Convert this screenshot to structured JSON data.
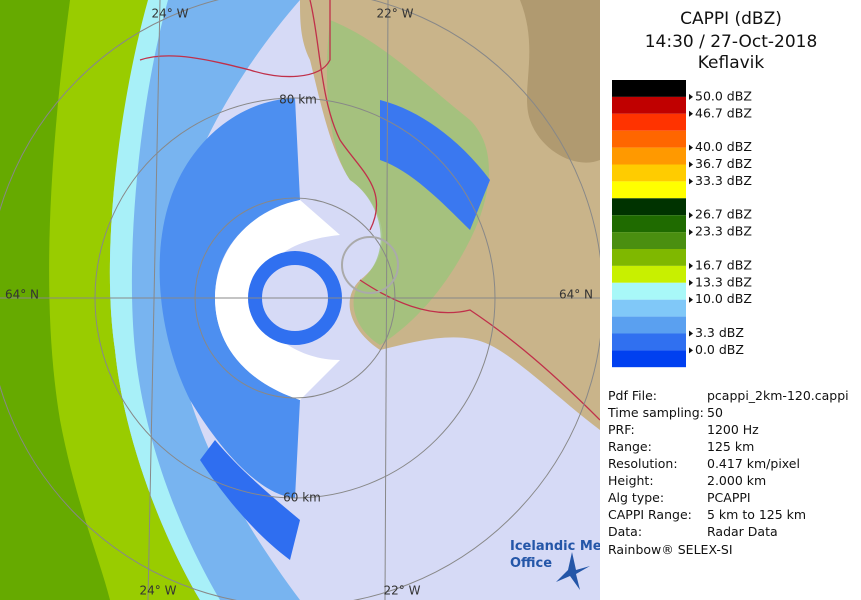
{
  "panel": {
    "title": "CAPPI (dBZ)",
    "time": "14:30 / 27-Oct-2018",
    "site": "Keflavik"
  },
  "legend": {
    "colors": [
      "#000000",
      "#c00000",
      "#ff3300",
      "#ff6600",
      "#ff9900",
      "#ffcc00",
      "#ffff00",
      "#003300",
      "#1f6b00",
      "#4a8f10",
      "#7fb800",
      "#c8f000",
      "#a8f8f8",
      "#80c8f8",
      "#5aa0f0",
      "#3070f0",
      "#0040f0",
      "#ffffff"
    ],
    "labels": [
      "50.0 dBZ",
      "46.7 dBZ",
      null,
      "40.0 dBZ",
      "36.7 dBZ",
      "33.3 dBZ",
      null,
      "26.7 dBZ",
      "23.3 dBZ",
      null,
      "16.7 dBZ",
      "13.3 dBZ",
      "10.0 dBZ",
      null,
      "3.3 dBZ",
      "0.0 dBZ"
    ]
  },
  "info": {
    "rows": [
      [
        "Pdf File:",
        "pcappi_2km-120.cappi"
      ],
      [
        "Time sampling:",
        "50"
      ],
      [
        "PRF:",
        "1200 Hz"
      ],
      [
        "Range:",
        "125 km"
      ],
      [
        "Resolution:",
        "0.417 km/pixel"
      ],
      [
        "Height:",
        "2.000 km"
      ],
      [
        "Alg type:",
        "PCAPPI"
      ],
      [
        "CAPPI Range:",
        "5 km to 125 km"
      ],
      [
        "Data:",
        "Radar Data"
      ]
    ]
  },
  "footer": "Rainbow® SELEX-SI",
  "map": {
    "labels": [
      "24° W",
      "22° W",
      "24° W",
      "22° W",
      "64° N",
      "64° N",
      "80 km",
      "60 km"
    ],
    "logo": [
      "Icelandic Met",
      "Office"
    ]
  }
}
